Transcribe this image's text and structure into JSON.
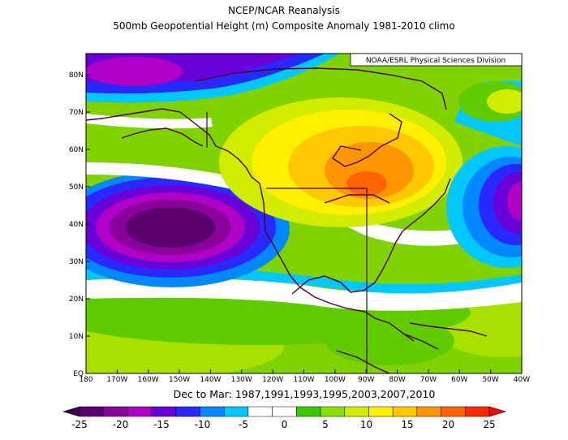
{
  "header": {
    "title_line1": "NCEP/NCAR Reanalysis",
    "title_line2": "500mb Geopotential Height (m) Composite Anomaly 1981-2010 climo"
  },
  "credit": "NOAA/ESRL Physical Sciences Division",
  "subtitle": "Dec to Mar: 1987,1991,1993,1995,2003,2007,2010",
  "axes": {
    "lat_labels": [
      "EQ",
      "10N",
      "20N",
      "30N",
      "40N",
      "50N",
      "60N",
      "70N",
      "80N"
    ],
    "lon_labels": [
      "180",
      "170W",
      "160W",
      "150W",
      "140W",
      "130W",
      "120W",
      "110W",
      "100W",
      "90W",
      "80W",
      "70W",
      "60W",
      "50W",
      "40W"
    ]
  },
  "colorbar": {
    "labels": [
      "-25",
      "-20",
      "-15",
      "-10",
      "-5",
      "0",
      "5",
      "10",
      "15",
      "20",
      "25"
    ],
    "colors": [
      "#5a006e",
      "#8a009a",
      "#b000c8",
      "#6a00d8",
      "#2828ff",
      "#0088ff",
      "#00c8ff",
      "#ffffff",
      "#ffffff",
      "#3cc800",
      "#8ce000",
      "#d2ec00",
      "#fff000",
      "#ffc800",
      "#ff9600",
      "#ff6400",
      "#ff2800"
    ]
  },
  "chart_data": {
    "type": "heatmap",
    "title": "500mb Geopotential Height (m) Composite Anomaly 1981-2010 climo",
    "lon_range": [
      -180,
      -40
    ],
    "lat_range": [
      0,
      85
    ],
    "value_range": [
      -25,
      25
    ],
    "features": [
      {
        "kind": "negative-anomaly",
        "center_lon": -153,
        "center_lat": 38,
        "min_value": -25
      },
      {
        "kind": "positive-anomaly",
        "center_lon": -90,
        "center_lat": 51,
        "max_value": 20
      },
      {
        "kind": "negative-anomaly",
        "center_lon": -45,
        "center_lat": 45,
        "min_value": -20
      },
      {
        "kind": "negative-anomaly",
        "center_lon": -160,
        "center_lat": 82,
        "min_value": -20
      },
      {
        "kind": "positive-anomaly",
        "center_lon": -45,
        "center_lat": 75,
        "max_value": 10
      }
    ]
  }
}
